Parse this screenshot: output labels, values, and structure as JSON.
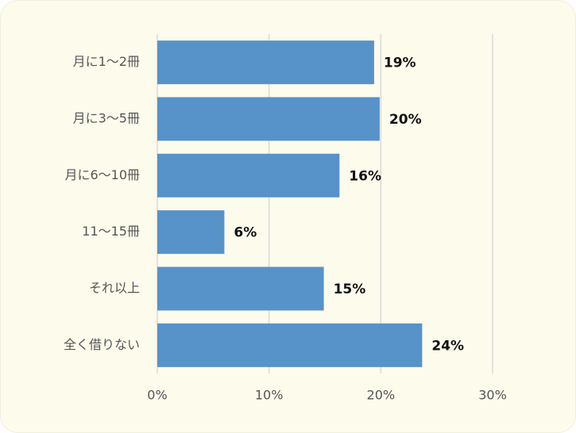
{
  "chart_data": {
    "type": "bar",
    "orientation": "horizontal",
    "categories": [
      "月に1～2冊",
      "月に3～5冊",
      "月に6～10冊",
      "11～15冊",
      "それ以上",
      "全く借りない"
    ],
    "values": [
      19.4,
      19.9,
      16.3,
      6,
      14.9,
      23.7
    ],
    "value_labels": [
      "19%",
      "20%",
      "16%",
      "6%",
      "15%",
      "24%"
    ],
    "color": "#5793c9",
    "xlim": [
      0,
      30
    ],
    "xticks": [
      {
        "value": 0,
        "label": "0%"
      },
      {
        "value": 10,
        "label": "10%"
      },
      {
        "value": 20,
        "label": "20%"
      },
      {
        "value": 30,
        "label": "30%"
      }
    ],
    "grid": true
  }
}
